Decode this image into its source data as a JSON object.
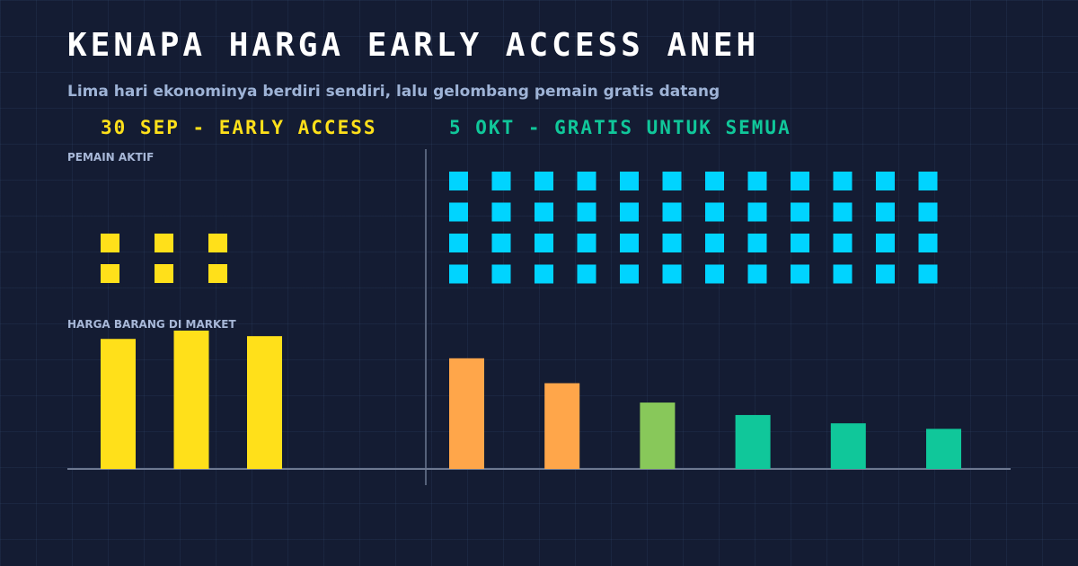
{
  "header": {
    "title": "KENAPA HARGA EARLY ACCESS ANEH",
    "subtitle": "Lima hari ekonominya berdiri sendiri, lalu gelombang pemain gratis datang"
  },
  "phases": {
    "early": "30 SEP - EARLY ACCESS",
    "free": "5 OKT - GRATIS UNTUK SEMUA"
  },
  "labels": {
    "players": "PEMAIN AKTIF",
    "price": "HARGA BARANG DI MARKET"
  },
  "colors": {
    "early": "#ffe01a",
    "players_free": "#00d4ff",
    "price_free": [
      "#ffa64a",
      "#ffa64a",
      "#88c85a",
      "#10c79a",
      "#10c79a",
      "#10c79a"
    ]
  },
  "chart_data": {
    "type": "bar",
    "players": {
      "early_count": 6,
      "free_count": 48
    },
    "price": {
      "early_values": [
        0.94,
        1.0,
        0.96
      ],
      "free_values": [
        0.8,
        0.62,
        0.48,
        0.39,
        0.33,
        0.29
      ]
    }
  }
}
